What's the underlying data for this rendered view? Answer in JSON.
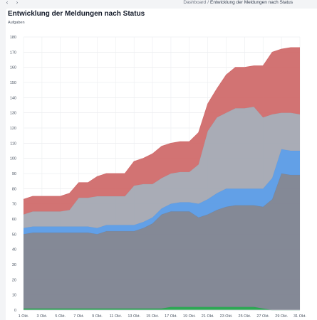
{
  "nav": {
    "back_icon": "chevron-left-icon",
    "forward_icon": "chevron-right-icon"
  },
  "breadcrumb": {
    "root": "Dashboard",
    "current": "Entwicklung der Meldungen nach Status"
  },
  "chart": {
    "title": "Entwicklung der Meldungen nach Status",
    "unit_label": "Aufgaben"
  },
  "chart_data": {
    "type": "area",
    "stacked": true,
    "title": "Entwicklung der Meldungen nach Status",
    "ylabel": "Aufgaben",
    "ylim": [
      0,
      180
    ],
    "yticks": [
      0,
      10,
      20,
      30,
      40,
      50,
      60,
      70,
      80,
      90,
      100,
      110,
      120,
      130,
      140,
      150,
      160,
      170,
      180
    ],
    "x_tick_labels": [
      "1 Okt.",
      "3 Okt.",
      "5 Okt.",
      "7 Okt.",
      "9 Okt.",
      "11 Okt.",
      "13 Okt.",
      "15 Okt.",
      "17 Okt.",
      "19 Okt.",
      "21 Okt.",
      "23 Okt.",
      "25 Okt.",
      "27 Okt.",
      "29 Okt.",
      "31 Okt."
    ],
    "x": [
      "1 Okt.",
      "2 Okt.",
      "3 Okt.",
      "4 Okt.",
      "5 Okt.",
      "6 Okt.",
      "7 Okt.",
      "8 Okt.",
      "9 Okt.",
      "10 Okt.",
      "11 Okt.",
      "12 Okt.",
      "13 Okt.",
      "14 Okt.",
      "15 Okt.",
      "16 Okt.",
      "17 Okt.",
      "18 Okt.",
      "19 Okt.",
      "20 Okt.",
      "21 Okt.",
      "22 Okt.",
      "23 Okt.",
      "24 Okt.",
      "25 Okt.",
      "26 Okt.",
      "27 Okt.",
      "28 Okt.",
      "29 Okt.",
      "30 Okt.",
      "31 Okt."
    ],
    "series": [
      {
        "color": "#22a34a",
        "values": [
          1,
          1,
          1,
          1,
          1,
          1,
          1,
          1,
          1,
          1,
          1,
          1,
          1,
          1,
          1,
          1,
          2,
          2,
          2,
          2,
          2,
          2,
          2,
          2,
          2,
          2,
          1,
          0,
          0,
          0,
          0
        ]
      },
      {
        "color": "#7d8390",
        "values": [
          49,
          50,
          50,
          50,
          50,
          50,
          50,
          50,
          49,
          51,
          51,
          51,
          51,
          53,
          56,
          62,
          63,
          63,
          63,
          59,
          61,
          64,
          66,
          67,
          67,
          67,
          67,
          73,
          90,
          89,
          89
        ]
      },
      {
        "color": "#5a9be6",
        "values": [
          4,
          4,
          4,
          4,
          4,
          4,
          4,
          4,
          4,
          4,
          4,
          4,
          4,
          4,
          4,
          4,
          5,
          6,
          6,
          9,
          10,
          11,
          12,
          11,
          11,
          11,
          12,
          14,
          16,
          16,
          16
        ]
      },
      {
        "color": "#a4a8b2",
        "values": [
          9,
          10,
          10,
          10,
          10,
          11,
          19,
          19,
          21,
          19,
          19,
          19,
          26,
          25,
          22,
          20,
          20,
          20,
          20,
          26,
          45,
          50,
          50,
          53,
          53,
          54,
          47,
          42,
          24,
          25,
          24
        ]
      },
      {
        "color": "#d06b6c",
        "values": [
          10,
          10,
          10,
          10,
          10,
          11,
          10,
          10,
          13,
          15,
          15,
          15,
          16,
          17,
          20,
          21,
          20,
          20,
          20,
          21,
          18,
          19,
          25,
          27,
          27,
          27,
          34,
          41,
          42,
          43,
          44
        ]
      }
    ]
  }
}
